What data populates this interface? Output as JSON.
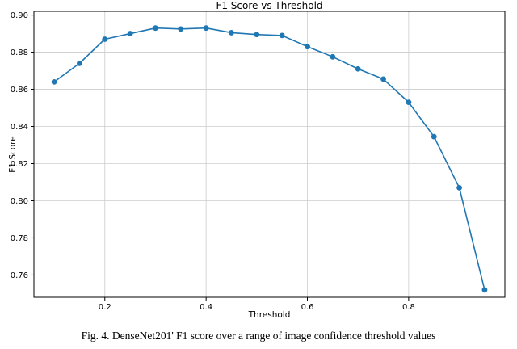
{
  "figure": {
    "caption": "Fig. 4.   DenseNet201' F1 score over a range of image confidence threshold values"
  },
  "chart_data": {
    "type": "line",
    "title": "F1 Score vs Threshold",
    "xlabel": "Threshold",
    "ylabel": "F1 Score",
    "x": [
      0.1,
      0.15,
      0.2,
      0.25,
      0.3,
      0.35,
      0.4,
      0.45,
      0.5,
      0.55,
      0.6,
      0.65,
      0.7,
      0.75,
      0.8,
      0.85,
      0.9,
      0.95
    ],
    "y": [
      0.864,
      0.874,
      0.887,
      0.89,
      0.893,
      0.8925,
      0.893,
      0.8905,
      0.8895,
      0.889,
      0.883,
      0.8775,
      0.871,
      0.8655,
      0.853,
      0.8345,
      0.807,
      0.752
    ],
    "xlim": [
      0.06,
      0.99
    ],
    "ylim": [
      0.748,
      0.902
    ],
    "xticks": [
      0.2,
      0.4,
      0.6,
      0.8
    ],
    "yticks": [
      0.76,
      0.78,
      0.8,
      0.82,
      0.84,
      0.86,
      0.88,
      0.9
    ],
    "grid": true,
    "legend": "none",
    "line_color": "#1f77b4",
    "marker": "circle",
    "grid_color": "#cccccc",
    "axis_color": "#000000"
  }
}
